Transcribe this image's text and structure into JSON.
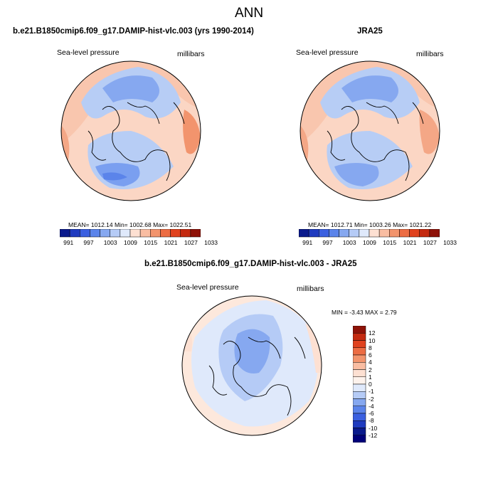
{
  "page_title": "ANN",
  "panels": [
    {
      "title": "b.e21.B1850cmip6.f09_g17.DAMIP-hist-vlc.003 (yrs 1990-2014)",
      "left_label": "Sea-level pressure",
      "right_label": "millibars",
      "stats": "MEAN= 1012.14  Min= 1002.68  Max= 1022.51"
    },
    {
      "title": "JRA25",
      "left_label": "Sea-level pressure",
      "right_label": "millibars",
      "stats": "MEAN= 1012.71  Min= 1003.26  Max= 1021.22"
    },
    {
      "title": "b.e21.B1850cmip6.f09_g17.DAMIP-hist-vlc.003 - JRA25",
      "left_label": "Sea-level pressure",
      "right_label": "millibars",
      "stats": "MIN = -3.43 MAX =   2.79"
    }
  ],
  "colorbar_abs": {
    "labels": [
      "991",
      "997",
      "1003",
      "1009",
      "1015",
      "1021",
      "1027",
      "1033"
    ],
    "colors": [
      "#0a1a8c",
      "#1f3bbf",
      "#3b60e0",
      "#5b84ea",
      "#86a8f0",
      "#b5cbf6",
      "#dfe9fb",
      "#fde0d2",
      "#f9bda2",
      "#f2946d",
      "#ec6c43",
      "#e0421e",
      "#c42a10",
      "#8e1208"
    ]
  },
  "colorbar_diff": {
    "labels": [
      "12",
      "10",
      "8",
      "6",
      "4",
      "2",
      "1",
      "0",
      "-1",
      "-2",
      "-4",
      "-6",
      "-8",
      "-10",
      "-12"
    ],
    "colors": [
      "#8e1208",
      "#c42a10",
      "#e0421e",
      "#ec6c43",
      "#f2946d",
      "#f9bda2",
      "#fde0d2",
      "#fdf2ec",
      "#dfe9fb",
      "#b5cbf6",
      "#86a8f0",
      "#5b84ea",
      "#3b60e0",
      "#1f3bbf",
      "#0a1a8c",
      "#00007a"
    ]
  }
}
